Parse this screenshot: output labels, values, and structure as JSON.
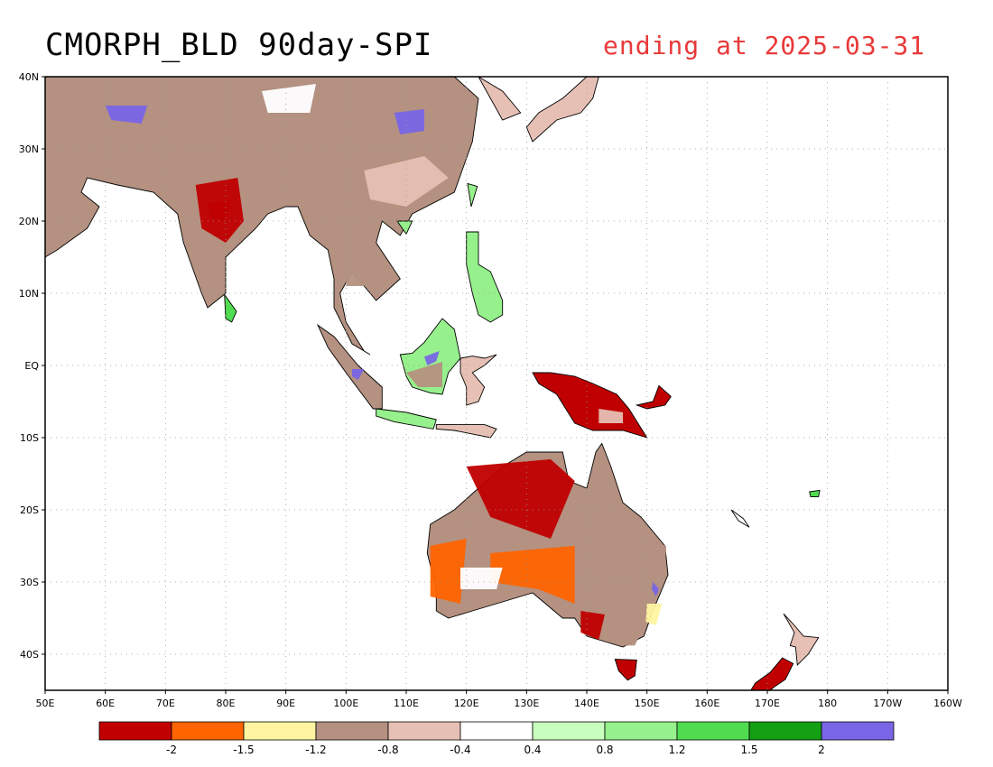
{
  "title": {
    "main": "CMORPH_BLD 90day-SPI",
    "date": "ending at 2025-03-31",
    "date_color": "#e83a3a"
  },
  "map": {
    "lon_range": [
      50,
      200
    ],
    "lat_range": [
      -45,
      40
    ],
    "gridlines": "dotted",
    "lat_ticks": [
      {
        "value": 40,
        "label": "40N"
      },
      {
        "value": 30,
        "label": "30N"
      },
      {
        "value": 20,
        "label": "20N"
      },
      {
        "value": 10,
        "label": "10N"
      },
      {
        "value": 0,
        "label": "EQ"
      },
      {
        "value": -10,
        "label": "10S"
      },
      {
        "value": -20,
        "label": "20S"
      },
      {
        "value": -30,
        "label": "30S"
      },
      {
        "value": -40,
        "label": "40S"
      }
    ],
    "lon_ticks": [
      {
        "value": 50,
        "label": "50E"
      },
      {
        "value": 60,
        "label": "60E"
      },
      {
        "value": 70,
        "label": "70E"
      },
      {
        "value": 80,
        "label": "80E"
      },
      {
        "value": 90,
        "label": "90E"
      },
      {
        "value": 100,
        "label": "100E"
      },
      {
        "value": 110,
        "label": "110E"
      },
      {
        "value": 120,
        "label": "120E"
      },
      {
        "value": 130,
        "label": "130E"
      },
      {
        "value": 140,
        "label": "140E"
      },
      {
        "value": 150,
        "label": "150E"
      },
      {
        "value": 160,
        "label": "160E"
      },
      {
        "value": 170,
        "label": "170E"
      },
      {
        "value": 180,
        "label": "180"
      },
      {
        "value": 190,
        "label": "170W"
      },
      {
        "value": 200,
        "label": "160W"
      }
    ]
  },
  "colorbar": {
    "colors": [
      "#c00000",
      "#ff6400",
      "#fff5a0",
      "#b49180",
      "#e6c0b4",
      "#ffffff",
      "#c8ffbe",
      "#96f08c",
      "#50dc50",
      "#14a014",
      "#7866e6"
    ],
    "labels": [
      "-2",
      "-1.5",
      "-1.2",
      "-0.8",
      "-0.4",
      "0.4",
      "0.8",
      "1.2",
      "1.5",
      "2"
    ]
  }
}
